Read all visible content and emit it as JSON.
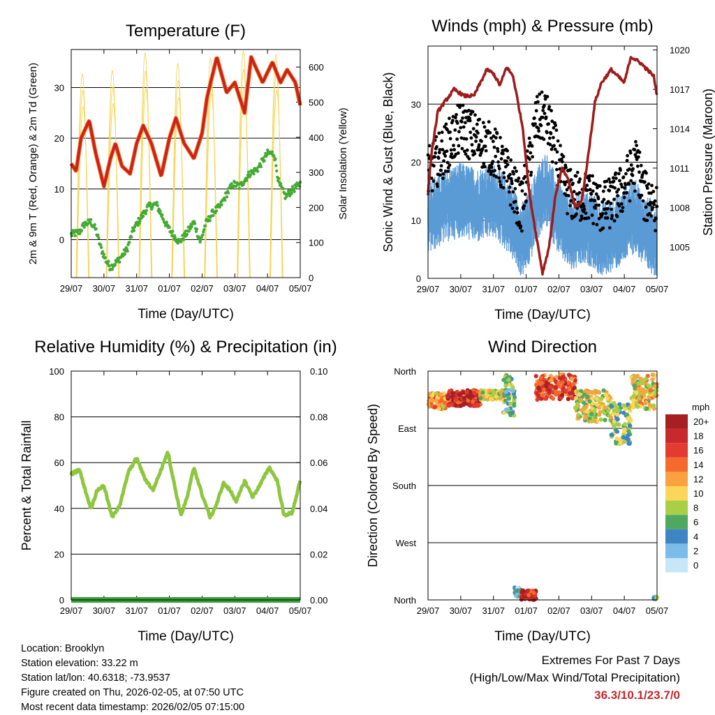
{
  "chart_data": [
    {
      "type": "line",
      "title": "Temperature (F)",
      "xlabel": "Time (Day/UTC)",
      "ylabel": "2m & 9m T (Red, Orange) & 2m Td (Green)",
      "ylabel_right": "Solar Insolation (Yellow)",
      "x_ticks": [
        "29/07",
        "30/07",
        "31/07",
        "01/07",
        "02/07",
        "03/07",
        "04/07",
        "05/07"
      ],
      "ylim": [
        -7.5,
        37.5
      ],
      "y_ticks": [
        0,
        10,
        20,
        30
      ],
      "y2lim": [
        0,
        650
      ],
      "y2_ticks": [
        0,
        100,
        200,
        300,
        400,
        500,
        600
      ],
      "series": [
        {
          "name": "2m & 9m T",
          "color": "#cc2020",
          "x": [
            0,
            0.15,
            0.3,
            0.55,
            0.75,
            1.0,
            1.2,
            1.35,
            1.55,
            1.8,
            2.0,
            2.2,
            2.45,
            2.75,
            3.0,
            3.2,
            3.45,
            3.75,
            4.0,
            4.15,
            4.45,
            4.75,
            5.0,
            5.3,
            5.5,
            5.85,
            6.15,
            6.4,
            6.6,
            6.85,
            7.0
          ],
          "values": [
            15,
            13.5,
            20,
            23.5,
            17,
            10.5,
            16,
            19,
            14.5,
            13,
            19,
            22.5,
            19,
            12.5,
            20,
            24,
            19,
            16,
            21,
            28,
            36,
            29,
            31,
            25,
            36,
            31,
            35,
            31,
            33.5,
            31,
            26.5
          ]
        },
        {
          "name": "2m Td",
          "color": "#44aa33",
          "x": [
            0,
            0.25,
            0.4,
            0.6,
            0.75,
            0.9,
            1.05,
            1.2,
            1.45,
            1.7,
            1.9,
            2.1,
            2.35,
            2.6,
            2.9,
            3.05,
            3.3,
            3.5,
            3.75,
            3.95,
            4.1,
            4.35,
            4.55,
            4.75,
            4.95,
            5.15,
            5.45,
            5.7,
            6.0,
            6.2,
            6.35,
            6.55,
            6.8,
            7.0
          ],
          "values": [
            1,
            1.5,
            3,
            3.5,
            2,
            -1.5,
            -4,
            -5.5,
            -4,
            -2,
            2,
            4,
            6.5,
            7,
            3,
            1.5,
            -0.5,
            1,
            3.5,
            -0.5,
            3,
            5.5,
            6.5,
            9,
            11,
            10.5,
            13,
            14,
            17,
            17,
            11,
            8.5,
            10,
            11
          ]
        },
        {
          "name": "Solar Insolation",
          "color": "#f5d555",
          "axis": "right",
          "peak_x": [
            0.35,
            1.27,
            2.27,
            3.27,
            4.27,
            5.27,
            6.27
          ],
          "peak_values": [
            580,
            590,
            640,
            610,
            625,
            645,
            635
          ]
        }
      ]
    },
    {
      "type": "scatter",
      "title": "Winds (mph) & Pressure (mb)",
      "xlabel": "Time (Day/UTC)",
      "ylabel": "Sonic Wind & Gust (Blue, Black)",
      "ylabel_right": "Station Pressure (Maroon)",
      "x_ticks": [
        "29/07",
        "30/07",
        "31/07",
        "01/07",
        "02/07",
        "03/07",
        "04/07",
        "05/07"
      ],
      "ylim": [
        0,
        40
      ],
      "y_ticks": [
        0,
        10,
        20,
        30
      ],
      "y2lim": [
        1002.6,
        1020.3
      ],
      "y2_ticks": [
        1005,
        1008,
        1011,
        1014,
        1017,
        1020
      ],
      "series": [
        {
          "name": "Sonic Wind",
          "color": "#5b9bd5",
          "x": [
            0,
            0.5,
            1.0,
            1.5,
            2.0,
            2.5,
            2.85,
            3.1,
            3.3,
            3.6,
            3.9,
            4.1,
            4.4,
            4.7,
            5.0,
            5.3,
            5.6,
            5.9,
            6.2,
            6.4,
            6.6,
            6.8,
            7.0
          ],
          "values": [
            12,
            14,
            15,
            14,
            15,
            12,
            8,
            10,
            14,
            17,
            13,
            11,
            9,
            10,
            10,
            8,
            9,
            10,
            12,
            12,
            9,
            9,
            8
          ]
        },
        {
          "name": "Gust",
          "color": "#000000",
          "x": [
            0,
            0.5,
            1.0,
            1.5,
            2.0,
            2.5,
            2.85,
            3.1,
            3.3,
            3.6,
            3.9,
            4.1,
            4.4,
            4.7,
            5.0,
            5.3,
            5.6,
            5.9,
            6.2,
            6.4,
            6.6,
            6.8,
            7.0
          ],
          "values": [
            18,
            22,
            26,
            24,
            22,
            17,
            12,
            20,
            27,
            28,
            22,
            17,
            14,
            14,
            14,
            12,
            13,
            15,
            18,
            20,
            14,
            14,
            12
          ]
        },
        {
          "name": "Station Pressure",
          "color": "#9e1b1b",
          "axis": "right",
          "x": [
            0,
            0.1,
            0.3,
            0.5,
            0.8,
            1.1,
            1.4,
            1.6,
            1.8,
            2.0,
            2.2,
            2.4,
            2.6,
            2.9,
            3.1,
            3.3,
            3.5,
            3.7,
            3.9,
            4.1,
            4.3,
            4.5,
            4.7,
            4.9,
            5.1,
            5.3,
            5.6,
            5.8,
            6.0,
            6.2,
            6.5,
            6.7,
            6.9,
            7.0
          ],
          "values": [
            1009,
            1012,
            1015.3,
            1016,
            1017,
            1016.5,
            1016.5,
            1017.5,
            1018.5,
            1018.2,
            1017.3,
            1018.7,
            1018,
            1014,
            1009,
            1006,
            1003,
            1005,
            1009,
            1011,
            1010,
            1008,
            1008.5,
            1012,
            1016,
            1017.5,
            1018.5,
            1018,
            1017.5,
            1019.5,
            1019,
            1018.5,
            1018,
            1016.5
          ]
        }
      ]
    },
    {
      "type": "line",
      "title": "Relative Humidity (%) & Precipitation (in)",
      "xlabel": "Time (Day/UTC)",
      "ylabel": "Percent & Total Rainfall",
      "x_ticks": [
        "29/07",
        "30/07",
        "31/07",
        "01/07",
        "02/07",
        "03/07",
        "04/07",
        "05/07"
      ],
      "ylim": [
        0,
        100
      ],
      "y_ticks": [
        0,
        20,
        40,
        60,
        80,
        100
      ],
      "y2lim": [
        0,
        0.1
      ],
      "y2_ticks": [
        "0.00",
        "0.02",
        "0.04",
        "0.06",
        "0.08",
        "0.10"
      ],
      "series": [
        {
          "name": "Relative Humidity",
          "color": "#8ec63f",
          "x": [
            0,
            0.25,
            0.45,
            0.6,
            0.8,
            1.0,
            1.25,
            1.5,
            1.75,
            2.0,
            2.25,
            2.5,
            2.75,
            2.95,
            3.1,
            3.35,
            3.55,
            3.75,
            4.0,
            4.25,
            4.45,
            4.65,
            4.85,
            5.05,
            5.3,
            5.55,
            5.8,
            6.05,
            6.3,
            6.5,
            6.75,
            7.0
          ],
          "values": [
            55,
            57,
            47,
            40,
            48,
            50,
            36,
            42,
            56,
            62,
            53,
            48,
            57,
            65,
            54,
            37,
            45,
            58,
            46,
            36,
            42,
            51,
            48,
            43,
            52,
            45,
            51,
            58,
            52,
            37,
            38,
            52
          ]
        },
        {
          "name": "Total Precipitation",
          "color": "#3a9e3a",
          "axis": "right",
          "x": [
            0,
            7.0
          ],
          "values": [
            0,
            0
          ]
        }
      ]
    },
    {
      "type": "scatter",
      "title": "Wind Direction",
      "xlabel": "Time (Day/UTC)",
      "ylabel": "Direction (Colored By Speed)",
      "x_ticks": [
        "29/07",
        "30/07",
        "31/07",
        "01/07",
        "02/07",
        "03/07",
        "04/07",
        "05/07"
      ],
      "y_ticks": [
        "North",
        "West",
        "South",
        "East",
        "North"
      ],
      "ylim": [
        0,
        360
      ],
      "colorbar": {
        "unit": "mph",
        "labels": [
          "20+",
          "18",
          "16",
          "14",
          "12",
          "10",
          "8",
          "6",
          "4",
          "2",
          "0"
        ],
        "colors": [
          "#a51f23",
          "#c8292d",
          "#e23b2f",
          "#f36a2c",
          "#f9a23f",
          "#fcd65a",
          "#a8cf45",
          "#4ea862",
          "#3f85c4",
          "#7cbce8",
          "#c7e6f8"
        ]
      },
      "clusters": [
        {
          "x": [
            0,
            0.6
          ],
          "dir": [
            300,
            325
          ],
          "speed": 12
        },
        {
          "x": [
            0.6,
            1.6
          ],
          "dir": [
            305,
            330
          ],
          "speed": 18
        },
        {
          "x": [
            1.6,
            2.3
          ],
          "dir": [
            315,
            330
          ],
          "speed": 10
        },
        {
          "x": [
            2.3,
            2.65
          ],
          "dir": [
            290,
            355
          ],
          "speed": 6
        },
        {
          "x": [
            2.65,
            2.85
          ],
          "dir": [
            5,
            20
          ],
          "speed": 4
        },
        {
          "x": [
            2.85,
            3.3
          ],
          "dir": [
            0,
            15
          ],
          "speed": 18
        },
        {
          "x": [
            3.3,
            4.5
          ],
          "dir": [
            315,
            355
          ],
          "speed": 16
        },
        {
          "x": [
            4.5,
            5.6
          ],
          "dir": [
            280,
            330
          ],
          "speed": 9
        },
        {
          "x": [
            5.6,
            6.2
          ],
          "dir": [
            245,
            310
          ],
          "speed": 7
        },
        {
          "x": [
            6.2,
            7.0
          ],
          "dir": [
            300,
            355
          ],
          "speed": 10
        },
        {
          "x": [
            6.9,
            7.0
          ],
          "dir": [
            1,
            5
          ],
          "speed": 6
        }
      ]
    }
  ],
  "info": {
    "location": "Location: Brooklyn",
    "elevation": "Station elevation: 33.22 m",
    "latlon": "Station lat/lon: 40.6318; -73.9537",
    "created": "Figure created on Thu, 2026-02-05, at 07:50 UTC",
    "recent": "Most recent data timestamp: 2026/02/05 07:15:00"
  },
  "extremes": {
    "line1": "Extremes For Past 7 Days",
    "line2": "(High/Low/Max Wind/Total Precipitation)",
    "values": "36.3/10.1/23.7/0"
  }
}
